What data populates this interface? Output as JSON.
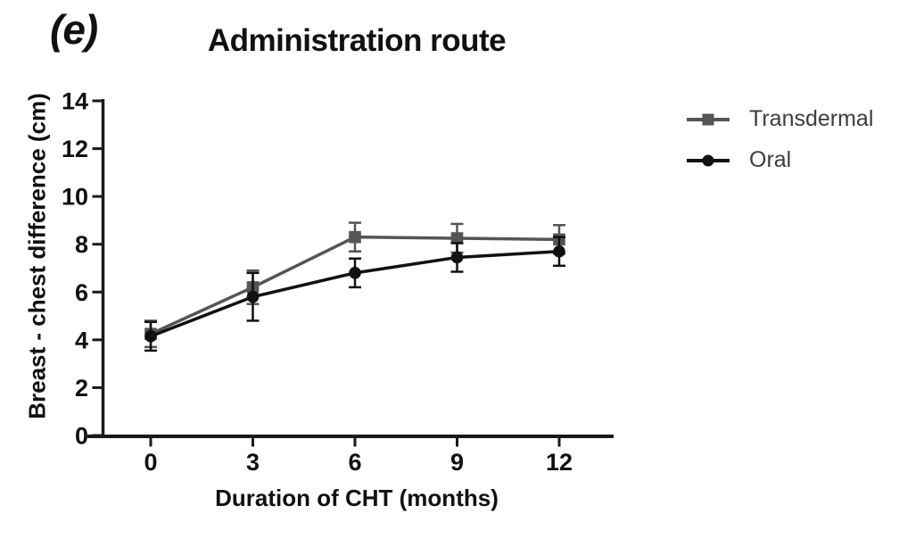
{
  "panel_label": "(e)",
  "chart_data": {
    "type": "line",
    "title": "Administration route",
    "xlabel": "Duration of CHT (months)",
    "ylabel": "Breast - chest difference (cm)",
    "x": [
      0,
      3,
      6,
      9,
      12
    ],
    "xticks": [
      0,
      3,
      6,
      9,
      12
    ],
    "yticks": [
      0,
      2,
      4,
      6,
      8,
      10,
      12,
      14
    ],
    "xlim": [
      -1.9,
      13.6
    ],
    "ylim": [
      0,
      14
    ],
    "grid": false,
    "legend_position": "right",
    "axis_color": "#1a1a1a",
    "series": [
      {
        "name": "Transdermal",
        "marker": "square",
        "color": "#555555",
        "values": [
          4.25,
          6.2,
          8.3,
          8.25,
          8.2
        ],
        "errors": [
          0.55,
          0.7,
          0.6,
          0.6,
          0.6
        ]
      },
      {
        "name": "Oral",
        "marker": "circle",
        "color": "#111111",
        "values": [
          4.15,
          5.8,
          6.8,
          7.45,
          7.7
        ],
        "errors": [
          0.6,
          1.0,
          0.6,
          0.6,
          0.6
        ]
      }
    ]
  }
}
